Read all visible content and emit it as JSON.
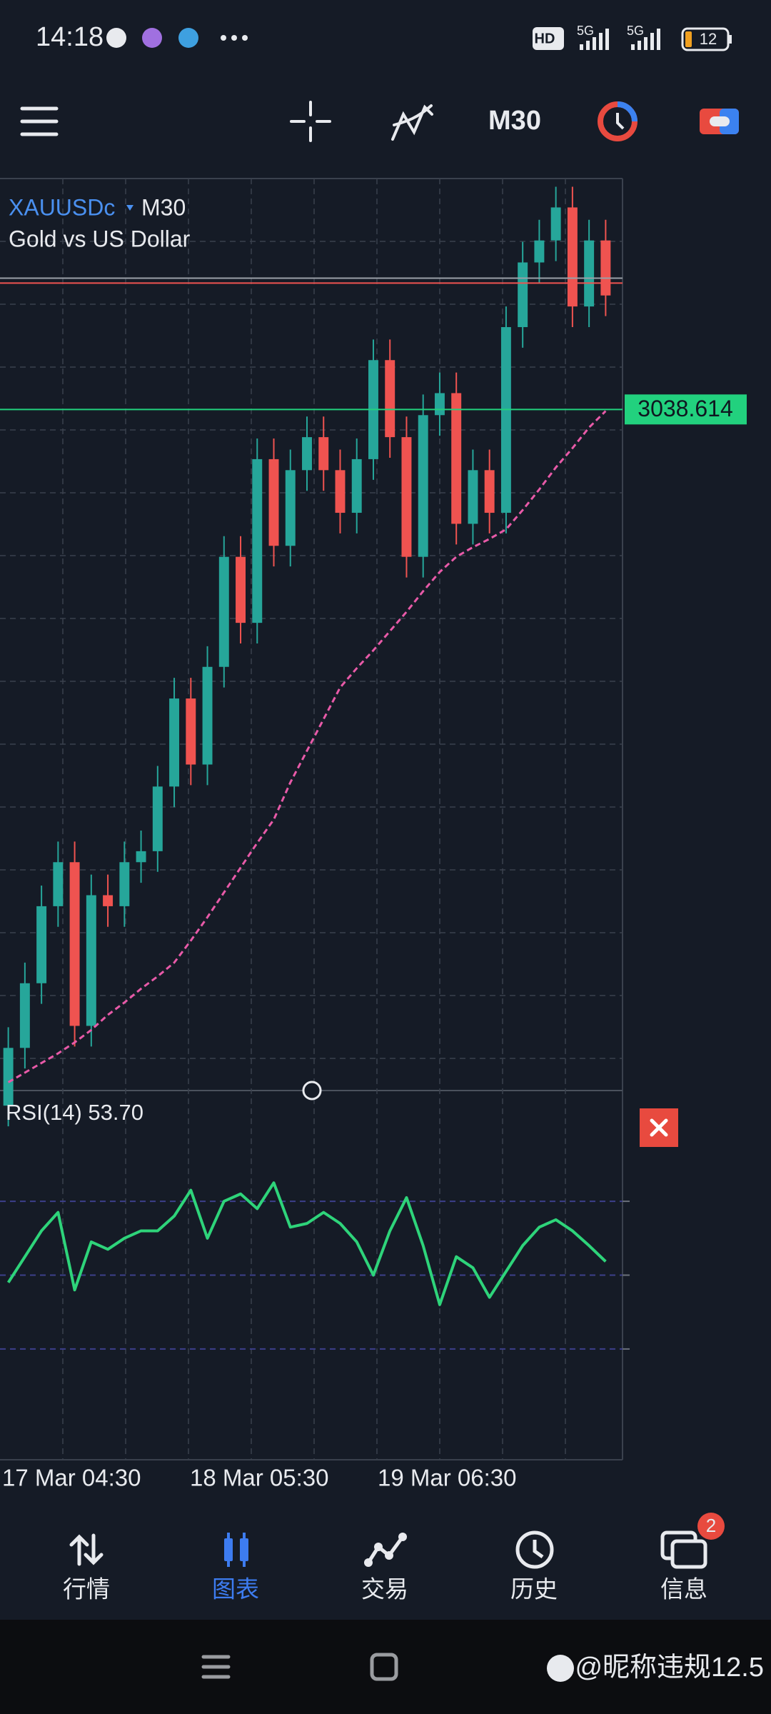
{
  "status_bar": {
    "time": "14:18",
    "hd": "HD",
    "network": "5G",
    "network2": "5G",
    "battery": "12"
  },
  "toolbar": {
    "timeframe": "M30"
  },
  "chart_data": {
    "type": "candlestick",
    "symbol": "XAUUSDc",
    "timeframe": "M30",
    "description": "Gold vs US Dollar",
    "open": [
      2988.0,
      2992.2,
      2996.9,
      3002.5,
      3005.7,
      2993.8,
      3003.3,
      3002.5,
      3005.7,
      3006.5,
      3011.2,
      3017.6,
      3012.8,
      3019.9,
      3027.9,
      3023.1,
      3035.0,
      3028.7,
      3034.2,
      3036.6,
      3034.2,
      3031.1,
      3035.0,
      3042.2,
      3036.6,
      3027.9,
      3038.2,
      3039.8,
      3030.3,
      3034.2,
      3031.1,
      3044.6,
      3049.3,
      3050.9,
      3053.3,
      3046.1,
      3050.9
    ],
    "high": [
      2993.7,
      2998.4,
      3004.0,
      3007.2,
      3007.2,
      3004.8,
      3004.8,
      3007.2,
      3008.0,
      3012.7,
      3019.1,
      3019.1,
      3021.4,
      3029.4,
      3029.4,
      3036.5,
      3036.5,
      3035.7,
      3038.1,
      3038.1,
      3035.7,
      3036.5,
      3043.7,
      3043.7,
      3038.1,
      3039.7,
      3041.3,
      3041.3,
      3035.7,
      3035.7,
      3046.1,
      3050.8,
      3052.4,
      3054.8,
      3054.8,
      3052.4,
      3052.4
    ],
    "low": [
      2986.5,
      2990.7,
      2995.4,
      3001.0,
      2992.3,
      2992.3,
      3001.0,
      3001.0,
      3004.2,
      3005.0,
      3009.7,
      3011.3,
      3011.3,
      3018.4,
      3021.6,
      3021.6,
      3027.2,
      3027.2,
      3032.7,
      3032.7,
      3029.6,
      3029.6,
      3033.5,
      3035.1,
      3026.4,
      3026.4,
      3036.7,
      3028.8,
      3028.8,
      3029.6,
      3029.6,
      3043.1,
      3047.8,
      3049.4,
      3044.6,
      3044.6,
      3045.4
    ],
    "close": [
      2992.2,
      2996.9,
      3002.5,
      3005.7,
      2993.8,
      3003.3,
      3002.5,
      3005.7,
      3006.5,
      3011.2,
      3017.6,
      3012.8,
      3019.9,
      3027.9,
      3023.1,
      3035.0,
      3028.7,
      3034.2,
      3036.6,
      3034.2,
      3031.1,
      3035.0,
      3042.2,
      3036.6,
      3027.9,
      3038.2,
      3039.8,
      3030.3,
      3034.2,
      3031.1,
      3044.6,
      3049.3,
      3050.9,
      3053.3,
      3046.1,
      3050.9,
      3046.9
    ],
    "ma": {
      "color": "#e85aa8",
      "values": [
        2989.7,
        2990.4,
        2991.1,
        2991.8,
        2992.6,
        2993.5,
        2994.6,
        2995.5,
        2996.5,
        2997.4,
        2998.4,
        3000.0,
        3001.7,
        3003.5,
        3005.3,
        3007.1,
        3008.8,
        3011.5,
        3013.8,
        3016.1,
        3018.4,
        3019.8,
        3021.1,
        3022.5,
        3023.9,
        3025.4,
        3026.8,
        3027.9,
        3028.6,
        3029.2,
        3029.9,
        3031.3,
        3032.8,
        3034.4,
        3035.8,
        3037.3,
        3038.5
      ]
    },
    "up_color": "#26a69a",
    "down_color": "#ef5350",
    "ylim": [
      2989.1,
      3055.4
    ],
    "current_price": 3038.614,
    "ask_line": 3048.0,
    "bid_line": 3047.8,
    "grid": true,
    "x_labels": [
      "17 Mar 04:30",
      "18 Mar 05:30",
      "19 Mar 06:30"
    ]
  },
  "rsi": {
    "type": "line",
    "label": "RSI(14) 53.70",
    "color": "#2ed47a",
    "values": [
      48,
      55,
      62,
      67,
      46,
      59,
      57,
      60,
      62,
      62,
      66,
      73,
      60,
      70,
      72,
      68,
      75,
      63,
      64,
      67,
      64,
      59,
      50,
      62,
      71,
      58,
      42,
      55,
      52,
      44,
      51,
      58,
      63,
      65,
      62,
      58,
      53.7
    ],
    "ylim": [
      0,
      100
    ],
    "levels": [
      30,
      50,
      70
    ]
  },
  "nav": {
    "items": [
      "行情",
      "图表",
      "交易",
      "历史",
      "信息"
    ],
    "active": 1,
    "badge": 2
  },
  "watermark": "@昵称违规12.5"
}
